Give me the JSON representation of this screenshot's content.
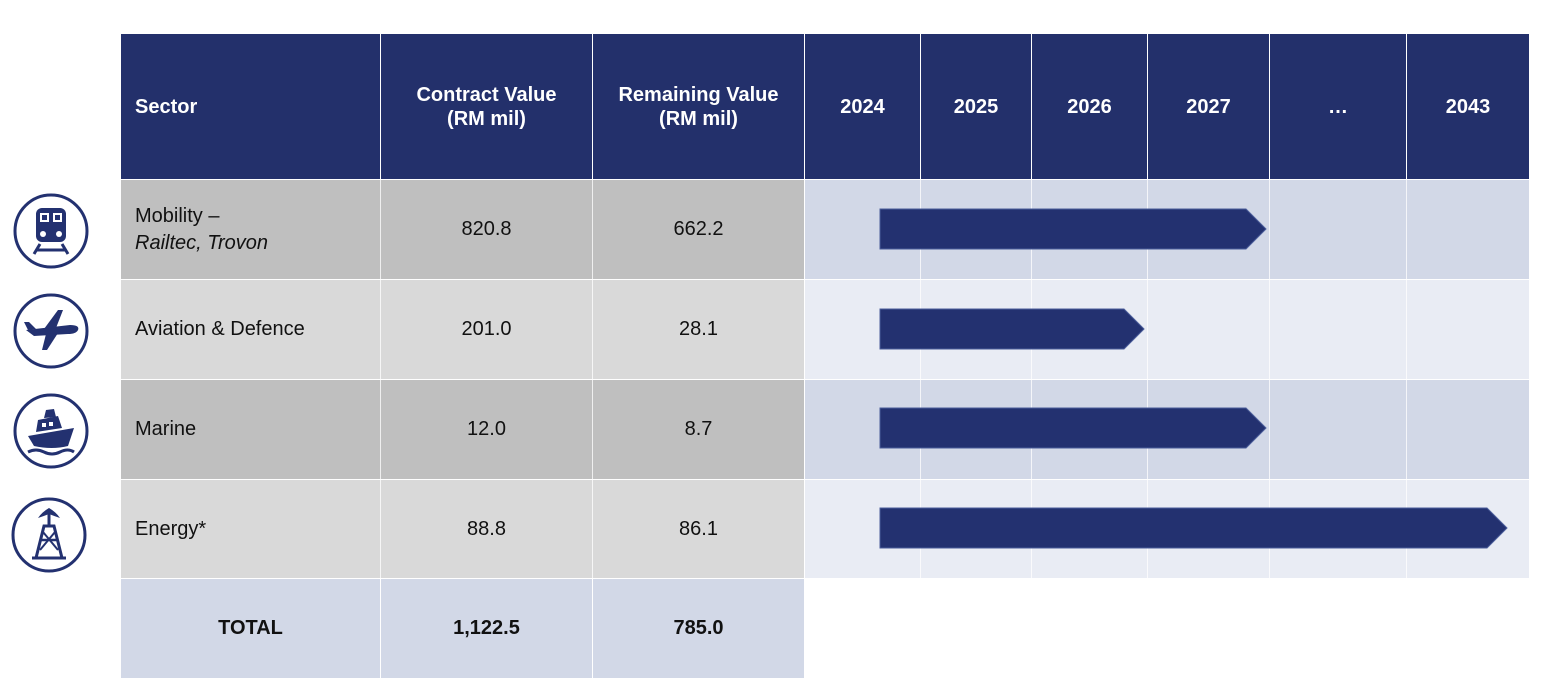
{
  "table": {
    "headers": {
      "sector": "Sector",
      "contract_line1": "Contract Value",
      "contract_line2": "(RM mil)",
      "remaining_line1": "Remaining Value",
      "remaining_line2": "(RM mil)",
      "years": [
        "2024",
        "2025",
        "2026",
        "2027",
        "…",
        "2043"
      ]
    },
    "rows": [
      {
        "sector_line1": "Mobility –",
        "sector_line2": "Railtec, Trovon",
        "contract": "820.8",
        "remaining": "662.2",
        "icon": "train-icon"
      },
      {
        "sector_line1": "Aviation & Defence",
        "contract": "201.0",
        "remaining": "28.1",
        "icon": "airplane-icon"
      },
      {
        "sector_line1": "Marine",
        "contract": "12.0",
        "remaining": "8.7",
        "icon": "ship-icon"
      },
      {
        "sector_line1": "Energy*",
        "contract": "88.8",
        "remaining": "86.1",
        "icon": "oil-rig-icon"
      }
    ],
    "total": {
      "label": "TOTAL",
      "contract": "1,122.5",
      "remaining": "785.0"
    }
  },
  "chart_data": {
    "type": "table",
    "title": "",
    "timeline_columns": [
      "2024",
      "2025",
      "2026",
      "2027",
      "…",
      "2043"
    ],
    "series": [
      {
        "name": "Mobility – Railtec, Trovon",
        "start": "2024",
        "end": "2027"
      },
      {
        "name": "Aviation & Defence",
        "start": "2024",
        "end": "2026"
      },
      {
        "name": "Marine",
        "start": "2024",
        "end": "2027"
      },
      {
        "name": "Energy*",
        "start": "2024",
        "end": "2043"
      }
    ]
  },
  "colors": {
    "header": "#23306b",
    "bar": "#233170",
    "row_dark": "#bfbfbf",
    "row_light": "#d9d9d9",
    "timeline_dark": "#d2d8e7",
    "timeline_light": "#e9ecf4",
    "total": "#d2d8e7"
  }
}
